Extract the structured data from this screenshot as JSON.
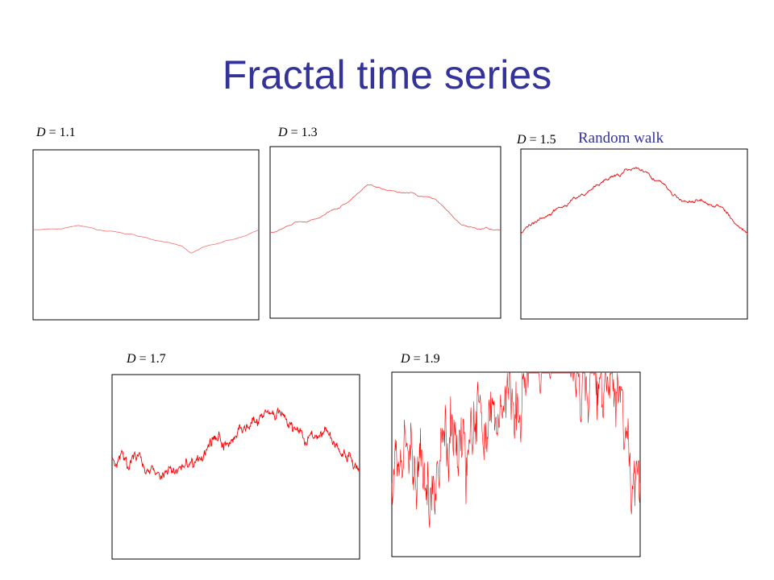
{
  "title": "Fractal time series",
  "panels": [
    {
      "symbol": "D",
      "value": "= 1.1"
    },
    {
      "symbol": "D",
      "value": "= 1.3"
    },
    {
      "symbol": "D",
      "value": "= 1.5",
      "note": "Random walk"
    },
    {
      "symbol": "D",
      "value": "= 1.7"
    },
    {
      "symbol": "D",
      "value": "= 1.9"
    }
  ]
}
